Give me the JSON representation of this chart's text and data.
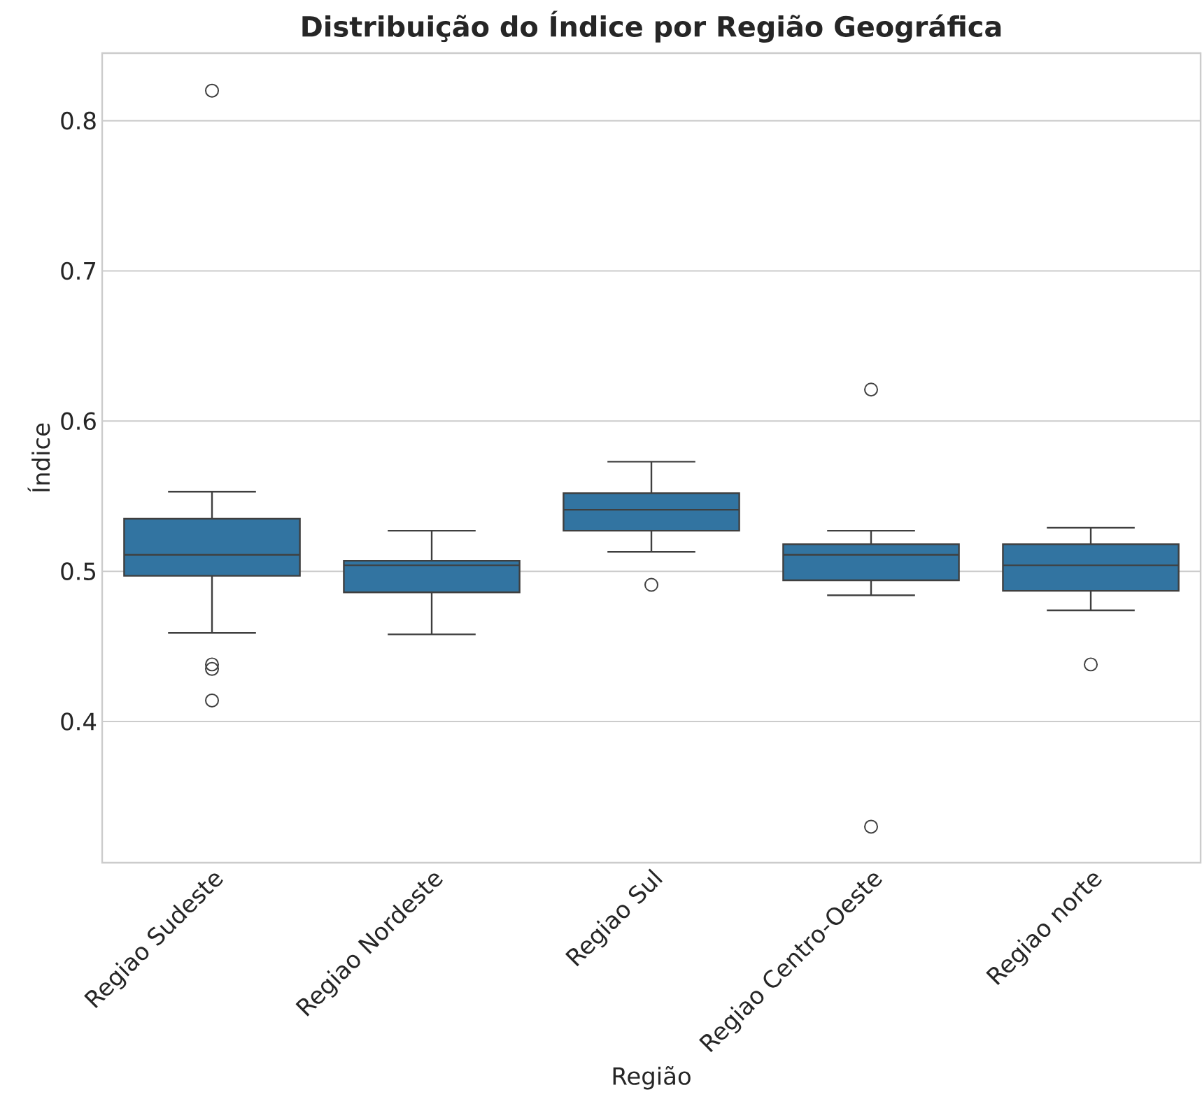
{
  "chart_data": {
    "type": "box",
    "title": "Distribuição do Índice por Região Geográfica",
    "xlabel": "Região",
    "ylabel": "Índice",
    "categories": [
      "Regiao Sudeste",
      "Regiao Nordeste",
      "Regiao Sul",
      "Regiao Centro-Oeste",
      "Regiao norte"
    ],
    "boxes": [
      {
        "low": 0.459,
        "q1": 0.497,
        "median": 0.511,
        "q3": 0.535,
        "high": 0.553,
        "outliers": [
          0.82,
          0.438,
          0.435,
          0.414
        ]
      },
      {
        "low": 0.458,
        "q1": 0.486,
        "median": 0.504,
        "q3": 0.507,
        "high": 0.527
      },
      {
        "low": 0.513,
        "q1": 0.527,
        "median": 0.541,
        "q3": 0.552,
        "high": 0.573,
        "outliers": [
          0.491
        ]
      },
      {
        "low": 0.484,
        "q1": 0.494,
        "median": 0.511,
        "q3": 0.518,
        "high": 0.527,
        "outliers": [
          0.621,
          0.33
        ]
      },
      {
        "low": 0.474,
        "q1": 0.487,
        "median": 0.504,
        "q3": 0.518,
        "high": 0.529,
        "outliers": [
          0.438
        ]
      }
    ],
    "color": "#3274a1",
    "ylim": [
      0.306,
      0.845
    ],
    "yticks": [
      0.4,
      0.5,
      0.6,
      0.7,
      0.8
    ],
    "grid": "y",
    "marker": "circle"
  }
}
